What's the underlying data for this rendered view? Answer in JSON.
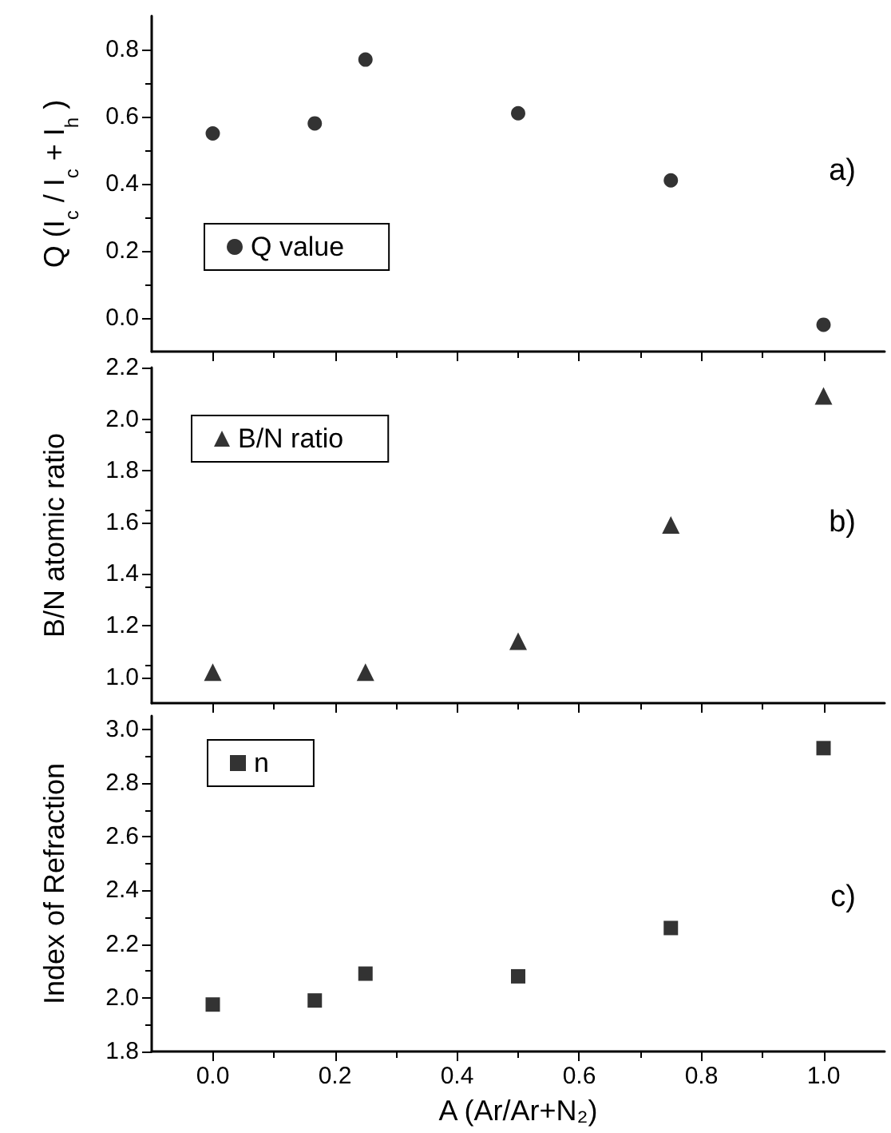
{
  "chart_data": [
    {
      "type": "scatter",
      "ylabel": "Q (I$_{c}$ / I$_{c}$ + I$_{h}$ )",
      "annotations": [
        "a)"
      ],
      "x": [
        0,
        0.167,
        0.25,
        0.5,
        0.75,
        1.0
      ],
      "series": [
        {
          "name": "Q value",
          "color": "#000000",
          "values": [
            0.55,
            0.58,
            0.77,
            0.61,
            0.41,
            -0.02
          ]
        }
      ],
      "marker": "circle",
      "legend": "bottom left",
      "grid": false,
      "tick_labels": "y",
      "xlim": [
        -0.1,
        1.1
      ],
      "xticks": [
        {
          "value": 0,
          "label": null
        },
        {
          "value": 0.2,
          "label": null
        },
        {
          "value": 0.4,
          "label": null
        },
        {
          "value": 0.6,
          "label": null
        },
        {
          "value": 0.8,
          "label": null
        },
        {
          "value": 1.0,
          "label": null
        }
      ],
      "ylim": [
        -0.1,
        0.9
      ],
      "yticks": [
        {
          "value": 0,
          "label": "0.0"
        },
        {
          "value": 0.2,
          "label": "0.2"
        },
        {
          "value": 0.4,
          "label": "0.4"
        },
        {
          "value": 0.6,
          "label": "0.6"
        },
        {
          "value": 0.8,
          "label": "0.8"
        }
      ]
    },
    {
      "type": "scatter",
      "ylabel": "B/N atomic ratio",
      "annotations": [
        "b)"
      ],
      "x": [
        0,
        0.25,
        0.5,
        0.75,
        1.0
      ],
      "series": [
        {
          "name": "B/N ratio",
          "color": "#000000",
          "values": [
            1.02,
            1.02,
            1.14,
            1.59,
            2.09
          ]
        }
      ],
      "marker": "triangle",
      "legend": "top left",
      "grid": false,
      "tick_labels": "y",
      "xlim": [
        -0.1,
        1.1
      ],
      "xticks": [
        {
          "value": 0,
          "label": null
        },
        {
          "value": 0.2,
          "label": null
        },
        {
          "value": 0.4,
          "label": null
        },
        {
          "value": 0.6,
          "label": null
        },
        {
          "value": 0.8,
          "label": null
        },
        {
          "value": 1.0,
          "label": null
        }
      ],
      "ylim": [
        0.9,
        2.2
      ],
      "yticks": [
        {
          "value": 1.0,
          "label": "1.0"
        },
        {
          "value": 1.2,
          "label": "1.2"
        },
        {
          "value": 1.4,
          "label": "1.4"
        },
        {
          "value": 1.6,
          "label": "1.6"
        },
        {
          "value": 1.8,
          "label": "1.8"
        },
        {
          "value": 2.0,
          "label": "2.0"
        },
        {
          "value": 2.2,
          "label": "2.2"
        }
      ]
    },
    {
      "type": "scatter",
      "xlabel": "A (Ar/Ar+N₂)",
      "ylabel": "Index of Refraction",
      "annotations": [
        "c)"
      ],
      "x": [
        0,
        0.167,
        0.25,
        0.5,
        0.75,
        1.0
      ],
      "series": [
        {
          "name": "n",
          "color": "#000000",
          "values": [
            1.975,
            1.99,
            2.09,
            2.08,
            2.26,
            2.93
          ]
        }
      ],
      "marker": "square",
      "legend": "top left",
      "grid": false,
      "xlim": [
        -0.1,
        1.1
      ],
      "xticks": [
        {
          "value": 0,
          "label": "0.0"
        },
        {
          "value": 0.2,
          "label": "0.2"
        },
        {
          "value": 0.4,
          "label": "0.4"
        },
        {
          "value": 0.6,
          "label": "0.6"
        },
        {
          "value": 0.8,
          "label": "0.8"
        },
        {
          "value": 1.0,
          "label": "1.0"
        }
      ],
      "ylim": [
        1.8,
        3.05
      ],
      "yticks": [
        {
          "value": 1.8,
          "label": "1.8"
        },
        {
          "value": 2.0,
          "label": "2.0"
        },
        {
          "value": 2.2,
          "label": "2.2"
        },
        {
          "value": 2.4,
          "label": "2.4"
        },
        {
          "value": 2.6,
          "label": "2.6"
        },
        {
          "value": 2.8,
          "label": "2.8"
        },
        {
          "value": 3.0,
          "label": "3.0"
        }
      ]
    }
  ]
}
